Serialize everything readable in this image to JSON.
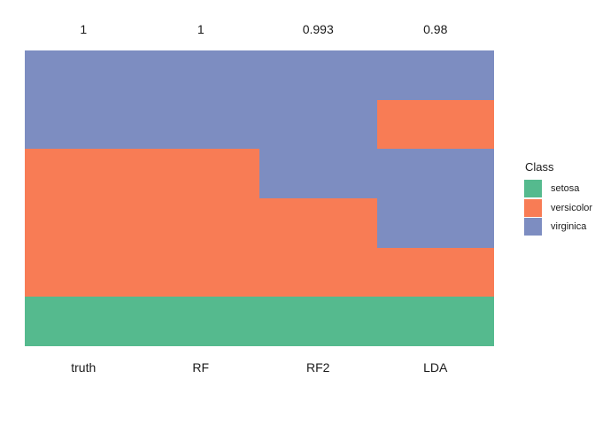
{
  "figure": {
    "background": "#ffffff"
  },
  "legend": {
    "title": "Class",
    "entries": [
      {
        "label": "setosa",
        "color": "#55BA8E"
      },
      {
        "label": "versicolor",
        "color": "#F87C55"
      },
      {
        "label": "virginica",
        "color": "#7D8DC1"
      }
    ]
  },
  "chart_data": {
    "type": "bar",
    "stacked": true,
    "orientation": "vertical",
    "title": "",
    "xlabel": "",
    "ylabel": "",
    "grid": false,
    "legend_position": "right",
    "categories": [
      "truth",
      "RF",
      "RF2",
      "LDA"
    ],
    "top_labels": [
      "1",
      "1",
      "0.993",
      "0.98"
    ],
    "class_colors": {
      "setosa": "#55BA8E",
      "versicolor": "#F87C55",
      "virginica": "#7D8DC1"
    },
    "columns": [
      {
        "name": "truth",
        "top_label": "1",
        "segments": [
          {
            "class": "virginica",
            "fraction": 0.3333
          },
          {
            "class": "versicolor",
            "fraction": 0.5
          },
          {
            "class": "setosa",
            "fraction": 0.1667
          }
        ]
      },
      {
        "name": "RF",
        "top_label": "1",
        "segments": [
          {
            "class": "virginica",
            "fraction": 0.3333
          },
          {
            "class": "versicolor",
            "fraction": 0.5
          },
          {
            "class": "setosa",
            "fraction": 0.1667
          }
        ]
      },
      {
        "name": "RF2",
        "top_label": "0.993",
        "segments": [
          {
            "class": "virginica",
            "fraction": 0.5
          },
          {
            "class": "versicolor",
            "fraction": 0.3333
          },
          {
            "class": "setosa",
            "fraction": 0.1667
          }
        ]
      },
      {
        "name": "LDA",
        "top_label": "0.98",
        "segments": [
          {
            "class": "virginica",
            "fraction": 0.1667
          },
          {
            "class": "versicolor",
            "fraction": 0.1667
          },
          {
            "class": "virginica",
            "fraction": 0.3333
          },
          {
            "class": "versicolor",
            "fraction": 0.1667
          },
          {
            "class": "setosa",
            "fraction": 0.1667
          }
        ]
      }
    ]
  }
}
